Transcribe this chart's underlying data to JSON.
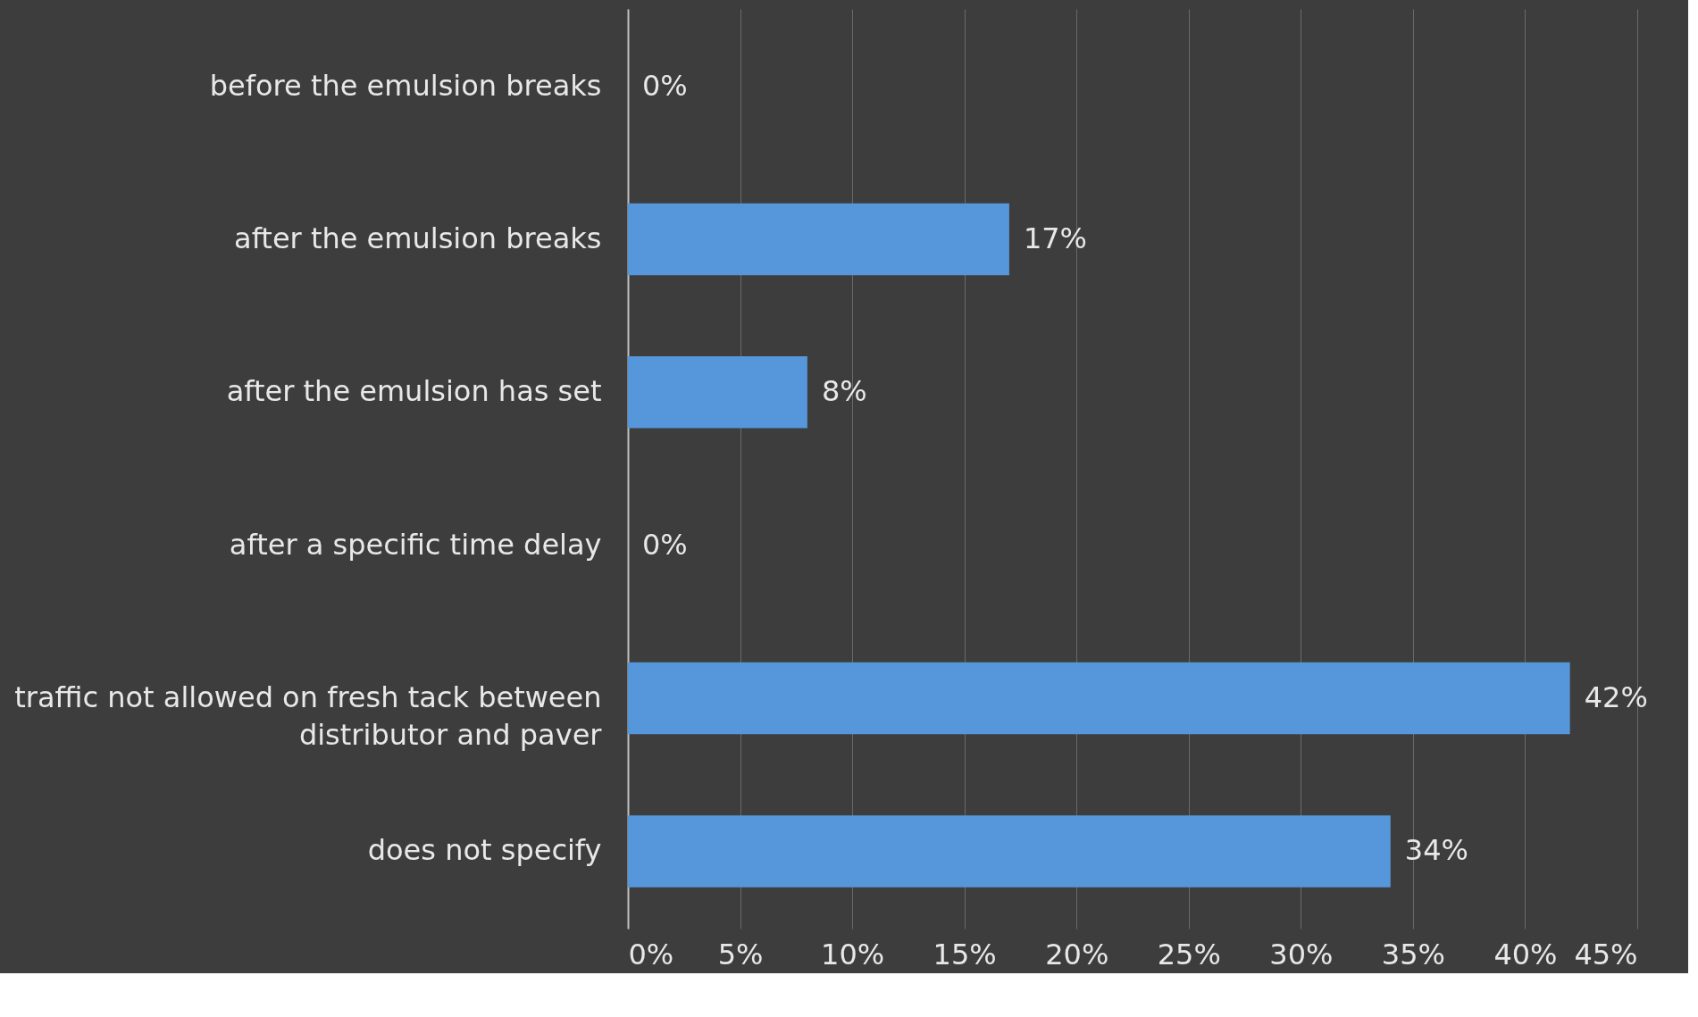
{
  "chart_data": {
    "type": "bar",
    "orientation": "horizontal",
    "categories": [
      "before the emulsion breaks",
      "after the emulsion breaks",
      "after the emulsion has set",
      "after a specific time delay",
      "traffic not allowed on fresh tack between distributor and paver",
      "does not specify"
    ],
    "values": [
      0,
      17,
      8,
      0,
      42,
      34
    ],
    "color": "#5597da",
    "xlim": [
      0,
      45
    ],
    "xticks": [
      {
        "value": 0,
        "label": "0%"
      },
      {
        "value": 5,
        "label": "5%"
      },
      {
        "value": 10,
        "label": "10%"
      },
      {
        "value": 15,
        "label": "15%"
      },
      {
        "value": 20,
        "label": "20%"
      },
      {
        "value": 25,
        "label": "25%"
      },
      {
        "value": 30,
        "label": "30%"
      },
      {
        "value": 35,
        "label": "35%"
      },
      {
        "value": 40,
        "label": "40%"
      },
      {
        "value": 45,
        "label": "45%"
      }
    ],
    "value_labels": [
      "0%",
      "17%",
      "8%",
      "0%",
      "42%",
      "34%"
    ],
    "grid": "x"
  }
}
